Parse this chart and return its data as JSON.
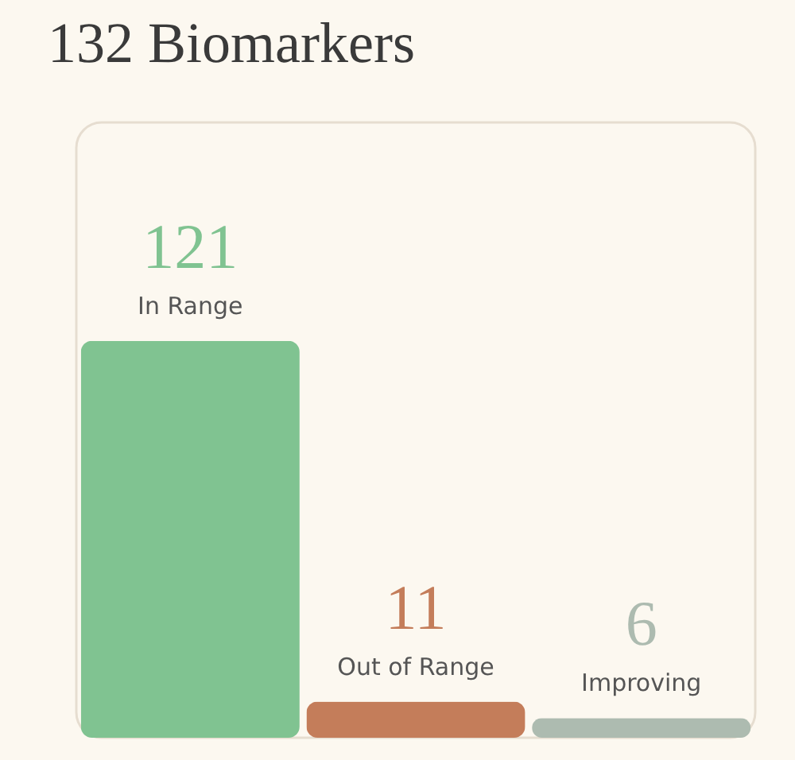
{
  "chart_data": {
    "type": "bar",
    "title": "132 Biomarkers",
    "categories": [
      "In Range",
      "Out of Range",
      "Improving"
    ],
    "values": [
      121,
      11,
      6
    ],
    "colors": [
      "#80c391",
      "#c47d5a",
      "#adbbb0"
    ],
    "data_labels": true
  }
}
